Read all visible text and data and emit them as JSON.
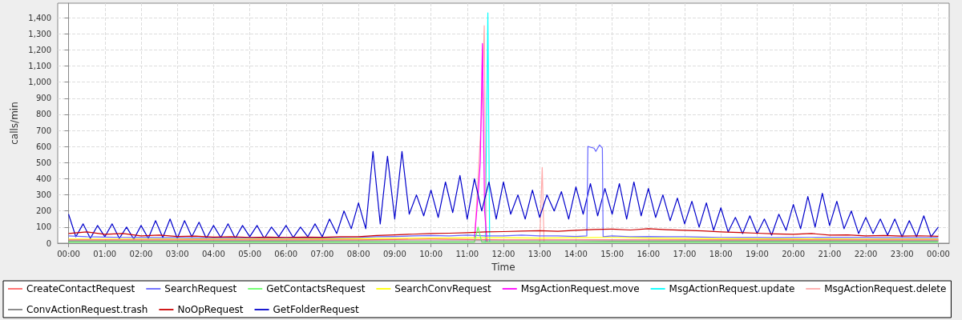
{
  "chart_data": {
    "type": "line",
    "xlabel": "Time",
    "ylabel": "calls/min",
    "xlim": [
      -0.3,
      24.3
    ],
    "ylim": [
      0,
      1490
    ],
    "xticks": [
      {
        "value": 0,
        "label": "00:00"
      },
      {
        "value": 1,
        "label": "01:00"
      },
      {
        "value": 2,
        "label": "02:00"
      },
      {
        "value": 3,
        "label": "03:00"
      },
      {
        "value": 4,
        "label": "04:00"
      },
      {
        "value": 5,
        "label": "05:00"
      },
      {
        "value": 6,
        "label": "06:00"
      },
      {
        "value": 7,
        "label": "07:00"
      },
      {
        "value": 8,
        "label": "08:00"
      },
      {
        "value": 9,
        "label": "09:00"
      },
      {
        "value": 10,
        "label": "10:00"
      },
      {
        "value": 11,
        "label": "11:00"
      },
      {
        "value": 12,
        "label": "12:00"
      },
      {
        "value": 13,
        "label": "13:00"
      },
      {
        "value": 14,
        "label": "14:00"
      },
      {
        "value": 15,
        "label": "15:00"
      },
      {
        "value": 16,
        "label": "16:00"
      },
      {
        "value": 17,
        "label": "17:00"
      },
      {
        "value": 18,
        "label": "18:00"
      },
      {
        "value": 19,
        "label": "19:00"
      },
      {
        "value": 20,
        "label": "20:00"
      },
      {
        "value": 21,
        "label": "21:00"
      },
      {
        "value": 22,
        "label": "22:00"
      },
      {
        "value": 23,
        "label": "23:00"
      },
      {
        "value": 24,
        "label": "00:00"
      }
    ],
    "yticks": [
      0,
      100,
      200,
      300,
      400,
      500,
      600,
      700,
      800,
      900,
      {
        "value": 1000,
        "label": "1,000"
      },
      {
        "value": 1100,
        "label": "1,100"
      },
      {
        "value": 1200,
        "label": "1,200"
      },
      {
        "value": 1300,
        "label": "1,300"
      },
      {
        "value": 1400,
        "label": "1,400"
      }
    ],
    "grid": true,
    "legend": "bottom",
    "marker": "none",
    "line_style": "solid",
    "series": [
      {
        "name": "CreateContactRequest",
        "color": "#ff6666",
        "x": [
          0,
          4,
          8,
          9,
          10,
          11,
          12,
          14,
          16,
          18,
          20,
          22,
          24
        ],
        "values": [
          20,
          20,
          20,
          23,
          25,
          23,
          21,
          21,
          21,
          20,
          20,
          20,
          20
        ]
      },
      {
        "name": "SearchRequest",
        "color": "#6666ff",
        "x": [
          0,
          0.5,
          1,
          1.5,
          2,
          2.5,
          3,
          3.5,
          4,
          4.5,
          5,
          5.5,
          6,
          6.5,
          7,
          7.5,
          8,
          8.5,
          9,
          9.5,
          10,
          10.5,
          11,
          11.5,
          12,
          12.5,
          13,
          13.5,
          14,
          14.3,
          14.33,
          14.5,
          14.55,
          14.65,
          14.73,
          14.75,
          15,
          15.5,
          16,
          16.5,
          17,
          17.5,
          18,
          18.5,
          19,
          19.5,
          20,
          20.5,
          21,
          21.5,
          22,
          22.5,
          23,
          23.5,
          24
        ],
        "values": [
          45,
          40,
          38,
          36,
          35,
          34,
          34,
          33,
          33,
          33,
          33,
          33,
          33,
          33,
          33,
          34,
          35,
          40,
          42,
          45,
          48,
          45,
          50,
          45,
          45,
          50,
          45,
          45,
          42,
          45,
          600,
          590,
          570,
          610,
          590,
          40,
          45,
          40,
          42,
          40,
          40,
          38,
          36,
          35,
          35,
          34,
          35,
          36,
          35,
          35,
          35,
          34,
          34,
          34,
          34
        ]
      },
      {
        "name": "GetContactsRequest",
        "color": "#66ff66",
        "x": [
          0,
          6,
          10,
          11.2,
          11.3,
          11.4,
          12,
          18,
          24
        ],
        "values": [
          7,
          7,
          7,
          7,
          100,
          7,
          7,
          7,
          7
        ]
      },
      {
        "name": "SearchConvRequest",
        "color": "#ffff00",
        "x": [
          0,
          2,
          4,
          6,
          8,
          10,
          12,
          13,
          14,
          15,
          16,
          18,
          20,
          22,
          24
        ],
        "values": [
          26,
          26,
          26,
          26,
          28,
          32,
          34,
          32,
          34,
          36,
          32,
          28,
          27,
          26,
          26
        ]
      },
      {
        "name": "MsgActionRequest.move",
        "color": "#ff00ff",
        "x": [
          11.2,
          11.3,
          11.36,
          11.42,
          11.48,
          11.55
        ],
        "values": [
          30,
          300,
          500,
          1240,
          200,
          5
        ]
      },
      {
        "name": "MsgActionRequest.update",
        "color": "#00ffff",
        "x": [
          11.5,
          11.57,
          11.62
        ],
        "values": [
          2,
          1430,
          5
        ]
      },
      {
        "name": "MsgActionRequest.delete",
        "color": "#ffaaaa",
        "x": [
          11.2,
          11.3,
          11.4,
          11.47,
          11.52,
          13,
          13.07,
          13.12
        ],
        "values": [
          5,
          400,
          810,
          1350,
          5,
          5,
          470,
          5
        ]
      },
      {
        "name": "ConvActionRequest.trash",
        "color": "#808080",
        "x": [
          0,
          6,
          10,
          14,
          18,
          24
        ],
        "values": [
          14,
          14,
          15,
          15,
          14,
          14
        ]
      },
      {
        "name": "NoOpRequest",
        "color": "#cc0000",
        "x": [
          0,
          0.5,
          1,
          1.5,
          2,
          2.5,
          3,
          3.5,
          4,
          4.5,
          5,
          5.5,
          6,
          6.5,
          7,
          7.5,
          8,
          8.5,
          9,
          9.5,
          10,
          10.5,
          11,
          11.5,
          12,
          12.5,
          13,
          13.5,
          14,
          14.5,
          15,
          15.5,
          16,
          16.5,
          17,
          17.5,
          18,
          18.5,
          19,
          19.5,
          20,
          20.5,
          21,
          21.5,
          22,
          22.5,
          23,
          23.5,
          24
        ],
        "values": [
          60,
          70,
          55,
          60,
          45,
          50,
          42,
          44,
          38,
          40,
          36,
          38,
          36,
          38,
          37,
          40,
          40,
          48,
          52,
          56,
          60,
          62,
          65,
          70,
          72,
          75,
          78,
          74,
          80,
          85,
          88,
          82,
          90,
          84,
          80,
          76,
          70,
          66,
          62,
          58,
          55,
          60,
          50,
          52,
          45,
          48,
          44,
          46,
          43
        ]
      },
      {
        "name": "GetFolderRequest",
        "color": "#0000cc",
        "x": [
          0,
          0.2,
          0.4,
          0.6,
          0.8,
          1,
          1.2,
          1.4,
          1.6,
          1.8,
          2,
          2.2,
          2.4,
          2.6,
          2.8,
          3,
          3.2,
          3.4,
          3.6,
          3.8,
          4,
          4.2,
          4.4,
          4.6,
          4.8,
          5,
          5.2,
          5.4,
          5.6,
          5.8,
          6,
          6.2,
          6.4,
          6.6,
          6.8,
          7,
          7.2,
          7.4,
          7.6,
          7.8,
          8,
          8.2,
          8.4,
          8.6,
          8.8,
          9,
          9.2,
          9.4,
          9.6,
          9.8,
          10,
          10.2,
          10.4,
          10.6,
          10.8,
          11,
          11.2,
          11.4,
          11.6,
          11.8,
          12,
          12.2,
          12.4,
          12.6,
          12.8,
          13,
          13.2,
          13.4,
          13.6,
          13.8,
          14,
          14.2,
          14.4,
          14.6,
          14.8,
          15,
          15.2,
          15.4,
          15.6,
          15.8,
          16,
          16.2,
          16.4,
          16.6,
          16.8,
          17,
          17.2,
          17.4,
          17.6,
          17.8,
          18,
          18.2,
          18.4,
          18.6,
          18.8,
          19,
          19.2,
          19.4,
          19.6,
          19.8,
          20,
          20.2,
          20.4,
          20.6,
          20.8,
          21,
          21.2,
          21.4,
          21.6,
          21.8,
          22,
          22.2,
          22.4,
          22.6,
          22.8,
          23,
          23.2,
          23.4,
          23.6,
          23.8,
          24
        ],
        "values": [
          180,
          40,
          120,
          30,
          110,
          40,
          120,
          30,
          100,
          25,
          110,
          30,
          140,
          35,
          150,
          30,
          140,
          40,
          130,
          30,
          110,
          35,
          120,
          30,
          110,
          40,
          110,
          30,
          100,
          40,
          110,
          35,
          100,
          40,
          120,
          40,
          150,
          60,
          200,
          90,
          250,
          90,
          570,
          120,
          540,
          150,
          570,
          180,
          300,
          170,
          330,
          160,
          380,
          190,
          420,
          150,
          400,
          200,
          380,
          150,
          380,
          180,
          300,
          150,
          330,
          160,
          300,
          200,
          320,
          150,
          350,
          180,
          370,
          170,
          340,
          180,
          370,
          150,
          380,
          170,
          340,
          160,
          300,
          140,
          280,
          120,
          260,
          100,
          250,
          80,
          220,
          70,
          160,
          60,
          170,
          60,
          150,
          50,
          180,
          80,
          240,
          90,
          290,
          100,
          310,
          110,
          260,
          90,
          200,
          60,
          160,
          60,
          150,
          50,
          150,
          40,
          140,
          40,
          170,
          40,
          100
        ]
      }
    ]
  }
}
